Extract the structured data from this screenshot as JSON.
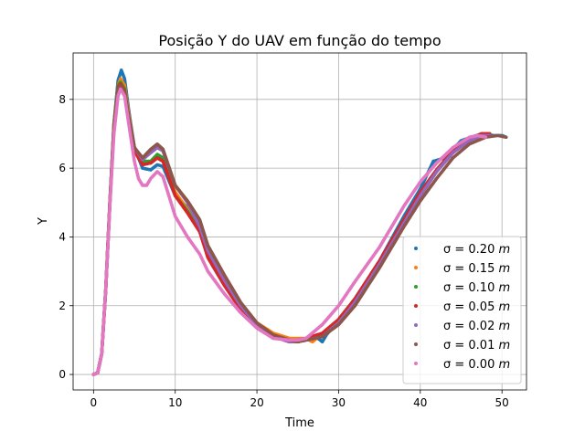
{
  "chart_data": {
    "type": "scatter",
    "title": "Posição Y do UAV em função do tempo",
    "xlabel": "Time",
    "ylabel": "Y",
    "xlim": [
      -2.5,
      53.0
    ],
    "ylim": [
      -0.45,
      9.35
    ],
    "xticks": [
      0,
      10,
      20,
      30,
      40,
      50
    ],
    "yticks": [
      0,
      2,
      4,
      6,
      8
    ],
    "grid": true,
    "legend_position": "lower-right",
    "series": [
      {
        "name": "σ = 0.20 m",
        "sigma": "0.20",
        "color": "#1f77b4",
        "points": [
          [
            0,
            0
          ],
          [
            0.5,
            0.05
          ],
          [
            1,
            0.6
          ],
          [
            1.5,
            2.5
          ],
          [
            2,
            5
          ],
          [
            2.5,
            7.3
          ],
          [
            3,
            8.55
          ],
          [
            3.4,
            8.85
          ],
          [
            3.8,
            8.6
          ],
          [
            4.3,
            7.7
          ],
          [
            5,
            6.6
          ],
          [
            6,
            6
          ],
          [
            7,
            5.95
          ],
          [
            7.8,
            6.1
          ],
          [
            8.5,
            6.05
          ],
          [
            10,
            5.2
          ],
          [
            11.5,
            4.85
          ],
          [
            13,
            4.2
          ],
          [
            14,
            3.4
          ],
          [
            16,
            2.6
          ],
          [
            18,
            1.9
          ],
          [
            20,
            1.45
          ],
          [
            22,
            1.15
          ],
          [
            24,
            1.0
          ],
          [
            26,
            1.0
          ],
          [
            27.5,
            1.05
          ],
          [
            28,
            0.95
          ],
          [
            28.5,
            1.15
          ],
          [
            30,
            1.6
          ],
          [
            32,
            2.2
          ],
          [
            35,
            3.3
          ],
          [
            38,
            4.6
          ],
          [
            40,
            5.4
          ],
          [
            41,
            5.9
          ],
          [
            41.6,
            6.2
          ],
          [
            43,
            6.3
          ],
          [
            45,
            6.8
          ],
          [
            47.5,
            7.0
          ],
          [
            49,
            6.95
          ],
          [
            50,
            6.95
          ],
          [
            50.5,
            6.9
          ]
        ]
      },
      {
        "name": "σ = 0.15 m",
        "sigma": "0.15",
        "color": "#ff7f0e",
        "points": [
          [
            0,
            0
          ],
          [
            0.5,
            0.05
          ],
          [
            1,
            0.6
          ],
          [
            1.5,
            2.5
          ],
          [
            2,
            5
          ],
          [
            2.5,
            7.3
          ],
          [
            3,
            8.4
          ],
          [
            3.3,
            8.6
          ],
          [
            3.8,
            8.4
          ],
          [
            4.3,
            7.6
          ],
          [
            5,
            6.6
          ],
          [
            6,
            6.15
          ],
          [
            7,
            6.15
          ],
          [
            7.8,
            6.3
          ],
          [
            8.5,
            6.2
          ],
          [
            10,
            5.3
          ],
          [
            11.5,
            4.8
          ],
          [
            13,
            4.35
          ],
          [
            14,
            3.5
          ],
          [
            16,
            2.7
          ],
          [
            18,
            2.0
          ],
          [
            20,
            1.5
          ],
          [
            22,
            1.2
          ],
          [
            24,
            1.05
          ],
          [
            26,
            1.05
          ],
          [
            26.8,
            0.95
          ],
          [
            27.5,
            1.1
          ],
          [
            28.5,
            1.2
          ],
          [
            30,
            1.5
          ],
          [
            32,
            2.1
          ],
          [
            35,
            3.2
          ],
          [
            38,
            4.4
          ],
          [
            40,
            5.2
          ],
          [
            42,
            5.9
          ],
          [
            44,
            6.5
          ],
          [
            46,
            6.85
          ],
          [
            47.5,
            7.0
          ],
          [
            48.5,
            7.0
          ]
        ]
      },
      {
        "name": "σ = 0.10 m",
        "sigma": "0.10",
        "color": "#2ca02c",
        "points": [
          [
            0,
            0
          ],
          [
            0.5,
            0.05
          ],
          [
            1,
            0.6
          ],
          [
            1.5,
            2.5
          ],
          [
            2,
            5
          ],
          [
            2.5,
            7.3
          ],
          [
            3,
            8.4
          ],
          [
            3.3,
            8.5
          ],
          [
            3.8,
            8.3
          ],
          [
            4.3,
            7.5
          ],
          [
            5,
            6.6
          ],
          [
            6,
            6.2
          ],
          [
            7,
            6.2
          ],
          [
            7.8,
            6.4
          ],
          [
            8.5,
            6.3
          ],
          [
            10,
            5.2
          ],
          [
            11.5,
            4.75
          ],
          [
            13,
            4.2
          ],
          [
            14,
            3.45
          ],
          [
            16,
            2.6
          ],
          [
            18,
            1.9
          ],
          [
            20,
            1.45
          ],
          [
            22,
            1.15
          ],
          [
            24,
            0.95
          ],
          [
            25,
            0.95
          ],
          [
            26,
            1.0
          ],
          [
            28,
            1.15
          ],
          [
            30,
            1.55
          ],
          [
            32,
            2.15
          ],
          [
            35,
            3.25
          ],
          [
            38,
            4.5
          ],
          [
            40,
            5.3
          ],
          [
            42,
            5.95
          ],
          [
            44,
            6.5
          ],
          [
            46,
            6.85
          ],
          [
            47.5,
            6.95
          ],
          [
            48.5,
            6.95
          ]
        ]
      },
      {
        "name": "σ = 0.05 m",
        "sigma": "0.05",
        "color": "#d62728",
        "points": [
          [
            0,
            0
          ],
          [
            0.5,
            0.05
          ],
          [
            1,
            0.6
          ],
          [
            1.5,
            2.5
          ],
          [
            2,
            5
          ],
          [
            2.5,
            7.2
          ],
          [
            3,
            8.35
          ],
          [
            3.3,
            8.45
          ],
          [
            3.8,
            8.25
          ],
          [
            4.3,
            7.5
          ],
          [
            5,
            6.5
          ],
          [
            6,
            6.1
          ],
          [
            7,
            6.15
          ],
          [
            7.8,
            6.3
          ],
          [
            8.5,
            6.2
          ],
          [
            10,
            5.2
          ],
          [
            11.5,
            4.7
          ],
          [
            13,
            4.15
          ],
          [
            14,
            3.4
          ],
          [
            16,
            2.6
          ],
          [
            18,
            1.9
          ],
          [
            20,
            1.4
          ],
          [
            22,
            1.1
          ],
          [
            24,
            0.95
          ],
          [
            25,
            1.0
          ],
          [
            26,
            1.05
          ],
          [
            28,
            1.2
          ],
          [
            30,
            1.6
          ],
          [
            32,
            2.2
          ],
          [
            35,
            3.3
          ],
          [
            38,
            4.5
          ],
          [
            40,
            5.3
          ],
          [
            42,
            5.95
          ],
          [
            44,
            6.5
          ],
          [
            46,
            6.85
          ],
          [
            47.5,
            7.0
          ],
          [
            48.5,
            7.0
          ]
        ]
      },
      {
        "name": "σ = 0.02 m",
        "sigma": "0.02",
        "color": "#9467bd",
        "points": [
          [
            0,
            0
          ],
          [
            0.5,
            0.05
          ],
          [
            1,
            0.6
          ],
          [
            1.5,
            2.5
          ],
          [
            2,
            5
          ],
          [
            2.5,
            7.2
          ],
          [
            3,
            8.3
          ],
          [
            3.3,
            8.4
          ],
          [
            3.8,
            8.2
          ],
          [
            4.3,
            7.5
          ],
          [
            5,
            6.6
          ],
          [
            6,
            6.25
          ],
          [
            7,
            6.45
          ],
          [
            7.8,
            6.6
          ],
          [
            8.5,
            6.5
          ],
          [
            10,
            5.5
          ],
          [
            11.5,
            5.0
          ],
          [
            13,
            4.3
          ],
          [
            14,
            3.6
          ],
          [
            16,
            2.75
          ],
          [
            18,
            2.0
          ],
          [
            20,
            1.45
          ],
          [
            22,
            1.1
          ],
          [
            24,
            0.95
          ],
          [
            25,
            0.95
          ],
          [
            26,
            1.0
          ],
          [
            28,
            1.1
          ],
          [
            30,
            1.5
          ],
          [
            32,
            2.1
          ],
          [
            35,
            3.2
          ],
          [
            38,
            4.4
          ],
          [
            40,
            5.2
          ],
          [
            42,
            5.9
          ],
          [
            44,
            6.45
          ],
          [
            46,
            6.8
          ],
          [
            47.5,
            6.95
          ],
          [
            48.5,
            6.95
          ]
        ]
      },
      {
        "name": "σ = 0.01 m",
        "sigma": "0.01",
        "color": "#8c564b",
        "points": [
          [
            0,
            0
          ],
          [
            0.5,
            0.05
          ],
          [
            1,
            0.6
          ],
          [
            1.5,
            2.5
          ],
          [
            2,
            5
          ],
          [
            2.5,
            7.2
          ],
          [
            3,
            8.3
          ],
          [
            3.3,
            8.4
          ],
          [
            3.8,
            8.2
          ],
          [
            4.3,
            7.5
          ],
          [
            5,
            6.6
          ],
          [
            6,
            6.3
          ],
          [
            7,
            6.55
          ],
          [
            7.8,
            6.7
          ],
          [
            8.5,
            6.55
          ],
          [
            10,
            5.5
          ],
          [
            11.5,
            5.05
          ],
          [
            13,
            4.5
          ],
          [
            14,
            3.75
          ],
          [
            16,
            2.9
          ],
          [
            18,
            2.1
          ],
          [
            20,
            1.5
          ],
          [
            22,
            1.15
          ],
          [
            24,
            1.0
          ],
          [
            25,
            0.95
          ],
          [
            26,
            1.0
          ],
          [
            28,
            1.1
          ],
          [
            30,
            1.45
          ],
          [
            32,
            2.0
          ],
          [
            35,
            3.1
          ],
          [
            38,
            4.3
          ],
          [
            40,
            5.05
          ],
          [
            42,
            5.7
          ],
          [
            44,
            6.3
          ],
          [
            46,
            6.7
          ],
          [
            48,
            6.9
          ],
          [
            49.5,
            6.95
          ],
          [
            50.5,
            6.9
          ]
        ]
      },
      {
        "name": "σ = 0.00 m",
        "sigma": "0.00",
        "color": "#e377c2",
        "points": [
          [
            0,
            0
          ],
          [
            0.5,
            0.05
          ],
          [
            1,
            0.6
          ],
          [
            1.5,
            2.5
          ],
          [
            2,
            4.9
          ],
          [
            2.5,
            7.0
          ],
          [
            3,
            8.1
          ],
          [
            3.3,
            8.3
          ],
          [
            3.8,
            8.1
          ],
          [
            4.3,
            7.3
          ],
          [
            5,
            6.2
          ],
          [
            5.5,
            5.7
          ],
          [
            6,
            5.5
          ],
          [
            6.5,
            5.5
          ],
          [
            7,
            5.7
          ],
          [
            7.8,
            5.9
          ],
          [
            8.5,
            5.75
          ],
          [
            10,
            4.6
          ],
          [
            11.5,
            4.0
          ],
          [
            13,
            3.5
          ],
          [
            14,
            3.0
          ],
          [
            16,
            2.35
          ],
          [
            18,
            1.8
          ],
          [
            20,
            1.35
          ],
          [
            22,
            1.05
          ],
          [
            24,
            1.0
          ],
          [
            25,
            1.0
          ],
          [
            26,
            1.05
          ],
          [
            28,
            1.45
          ],
          [
            30,
            2.0
          ],
          [
            32,
            2.7
          ],
          [
            35,
            3.7
          ],
          [
            38,
            4.9
          ],
          [
            40,
            5.6
          ],
          [
            42,
            6.15
          ],
          [
            44,
            6.6
          ],
          [
            46,
            6.9
          ],
          [
            47,
            6.95
          ],
          [
            48,
            6.9
          ]
        ]
      }
    ]
  }
}
